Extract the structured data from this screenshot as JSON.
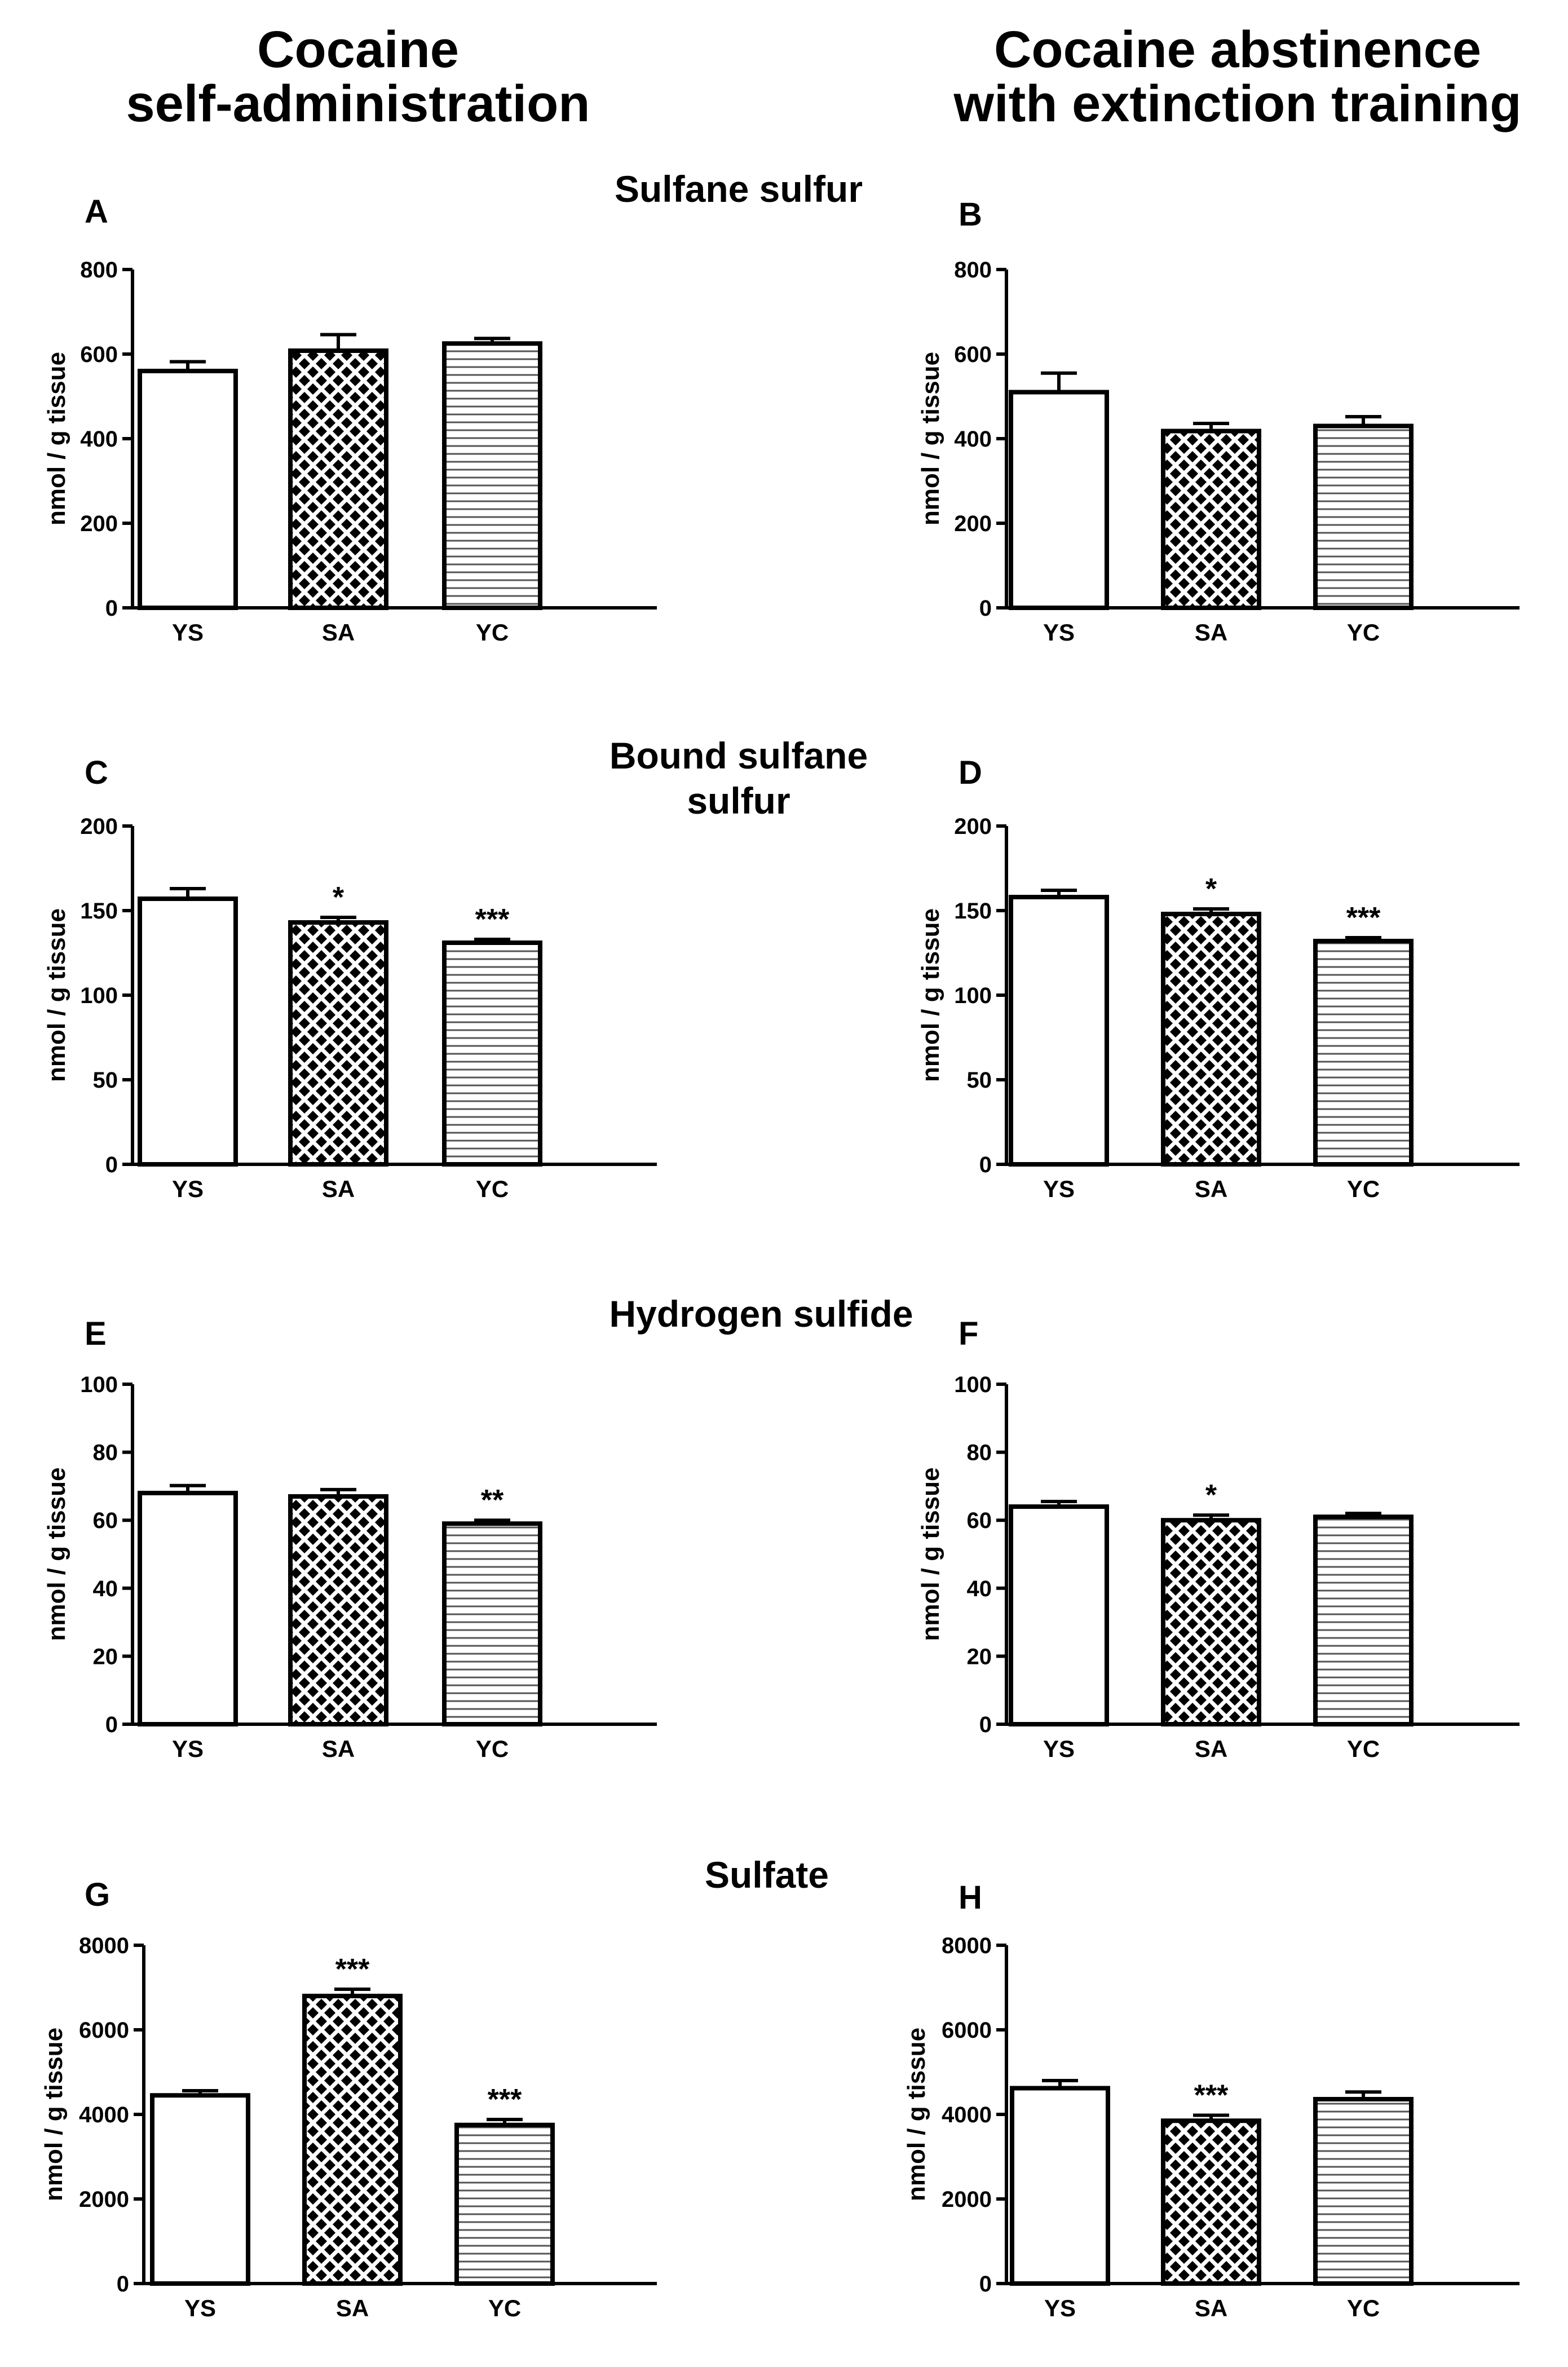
{
  "columns": {
    "left": {
      "line1": "Cocaine",
      "line2": "self-administration"
    },
    "right": {
      "line1": "Cocaine abstinence",
      "line2": "with extinction training"
    }
  },
  "sections": {
    "sulfane": "Sulfane sulfur",
    "bound": {
      "line1": "Bound sulfane",
      "line2": "sulfur"
    },
    "h2s": "Hydrogen sulfide",
    "sulfate": "Sulfate"
  },
  "colors": {
    "bar_stroke": "#000000",
    "fill_plain": "#ffffff"
  },
  "chart_data": [
    {
      "panel": "A",
      "type": "bar",
      "ylabel": "nmol / g tissue",
      "ylim": [
        0,
        800
      ],
      "yticks": [
        0,
        200,
        400,
        600,
        800
      ],
      "categories": [
        "YS",
        "SA",
        "YC"
      ],
      "values": [
        560,
        608,
        625
      ],
      "errors": [
        22,
        38,
        12
      ],
      "sig": [
        "",
        "",
        ""
      ],
      "patterns": [
        "plain",
        "crosshatch",
        "horizontal"
      ]
    },
    {
      "panel": "B",
      "type": "bar",
      "ylabel": "nmol / g tissue",
      "ylim": [
        0,
        800
      ],
      "yticks": [
        0,
        200,
        400,
        600,
        800
      ],
      "categories": [
        "YS",
        "SA",
        "YC"
      ],
      "values": [
        510,
        418,
        430
      ],
      "errors": [
        45,
        18,
        22
      ],
      "sig": [
        "",
        "",
        ""
      ],
      "patterns": [
        "plain",
        "crosshatch",
        "horizontal"
      ]
    },
    {
      "panel": "C",
      "type": "bar",
      "ylabel": "nmol / g tissue",
      "ylim": [
        0,
        200
      ],
      "yticks": [
        0,
        50,
        100,
        150,
        200
      ],
      "categories": [
        "YS",
        "SA",
        "YC"
      ],
      "values": [
        157,
        143,
        131
      ],
      "errors": [
        6,
        3,
        2
      ],
      "sig": [
        "",
        "*",
        "***"
      ],
      "patterns": [
        "plain",
        "crosshatch",
        "horizontal"
      ]
    },
    {
      "panel": "D",
      "type": "bar",
      "ylabel": "nmol / g tissue",
      "ylim": [
        0,
        200
      ],
      "yticks": [
        0,
        50,
        100,
        150,
        200
      ],
      "categories": [
        "YS",
        "SA",
        "YC"
      ],
      "values": [
        158,
        148,
        132
      ],
      "errors": [
        4,
        3,
        2
      ],
      "sig": [
        "",
        "*",
        "***"
      ],
      "patterns": [
        "plain",
        "crosshatch",
        "horizontal"
      ]
    },
    {
      "panel": "E",
      "type": "bar",
      "ylabel": "nmol / g tissue",
      "ylim": [
        0,
        100
      ],
      "yticks": [
        0,
        20,
        40,
        60,
        80,
        100
      ],
      "categories": [
        "YS",
        "SA",
        "YC"
      ],
      "values": [
        68,
        67,
        59
      ],
      "errors": [
        2.2,
        2,
        1
      ],
      "sig": [
        "",
        "",
        "**"
      ],
      "patterns": [
        "plain",
        "crosshatch",
        "horizontal"
      ]
    },
    {
      "panel": "F",
      "type": "bar",
      "ylabel": "nmol / g tissue",
      "ylim": [
        0,
        100
      ],
      "yticks": [
        0,
        20,
        40,
        60,
        80,
        100
      ],
      "categories": [
        "YS",
        "SA",
        "YC"
      ],
      "values": [
        64,
        60,
        61
      ],
      "errors": [
        1.5,
        1.5,
        1
      ],
      "sig": [
        "",
        "*",
        ""
      ],
      "patterns": [
        "plain",
        "crosshatch",
        "horizontal"
      ]
    },
    {
      "panel": "G",
      "type": "bar",
      "ylabel": "nmol / g tissue",
      "ylim": [
        0,
        8000
      ],
      "yticks": [
        0,
        2000,
        4000,
        6000,
        8000
      ],
      "categories": [
        "YS",
        "SA",
        "YC"
      ],
      "values": [
        4450,
        6800,
        3750
      ],
      "errors": [
        110,
        160,
        130
      ],
      "sig": [
        "",
        "***",
        "***"
      ],
      "patterns": [
        "plain",
        "crosshatch",
        "horizontal"
      ]
    },
    {
      "panel": "H",
      "type": "bar",
      "ylabel": "nmol / g tissue",
      "ylim": [
        0,
        8000
      ],
      "yticks": [
        0,
        2000,
        4000,
        6000,
        8000
      ],
      "categories": [
        "YS",
        "SA",
        "YC"
      ],
      "values": [
        4620,
        3850,
        4360
      ],
      "errors": [
        180,
        130,
        170
      ],
      "sig": [
        "",
        "***",
        ""
      ],
      "patterns": [
        "plain",
        "crosshatch",
        "horizontal"
      ]
    }
  ]
}
